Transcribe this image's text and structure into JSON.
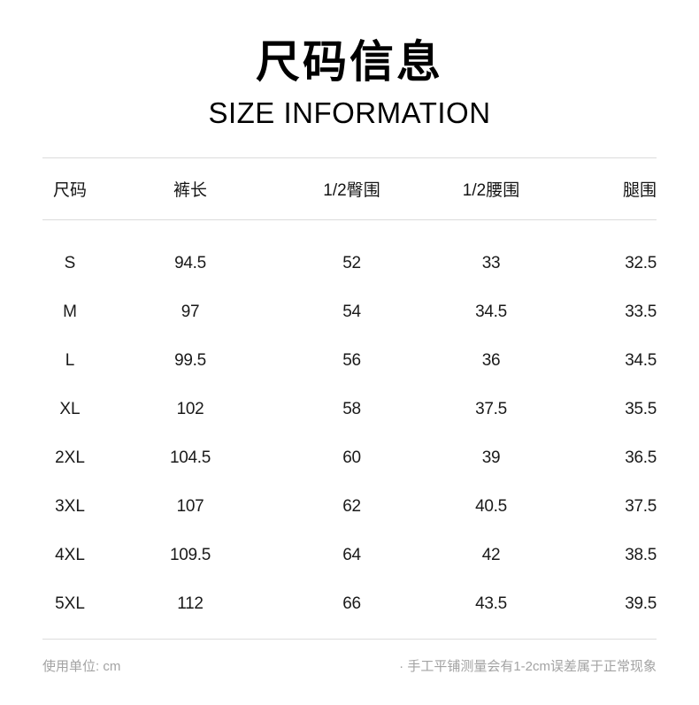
{
  "header": {
    "title_zh": "尺码信息",
    "title_en": "SIZE INFORMATION"
  },
  "table": {
    "unit": "cm",
    "headers": [
      "尺码",
      "裤长",
      "1/2臀围",
      "1/2腰围",
      "腿围"
    ],
    "rows": [
      {
        "cells": [
          "S",
          "94.5",
          "52",
          "33",
          "32.5"
        ]
      },
      {
        "cells": [
          "M",
          "97",
          "54",
          "34.5",
          "33.5"
        ]
      },
      {
        "cells": [
          "L",
          "99.5",
          "56",
          "36",
          "34.5"
        ]
      },
      {
        "cells": [
          "XL",
          "102",
          "58",
          "37.5",
          "35.5"
        ]
      },
      {
        "cells": [
          "2XL",
          "104.5",
          "60",
          "39",
          "36.5"
        ]
      },
      {
        "cells": [
          "3XL",
          "107",
          "62",
          "40.5",
          "37.5"
        ]
      },
      {
        "cells": [
          "4XL",
          "109.5",
          "64",
          "42",
          "38.5"
        ]
      },
      {
        "cells": [
          "5XL",
          "112",
          "66",
          "43.5",
          "39.5"
        ]
      }
    ]
  },
  "footer": {
    "unit_note": "使用单位: cm",
    "measure_note": "· 手工平铺测量会有1-2cm误差属于正常现象"
  }
}
